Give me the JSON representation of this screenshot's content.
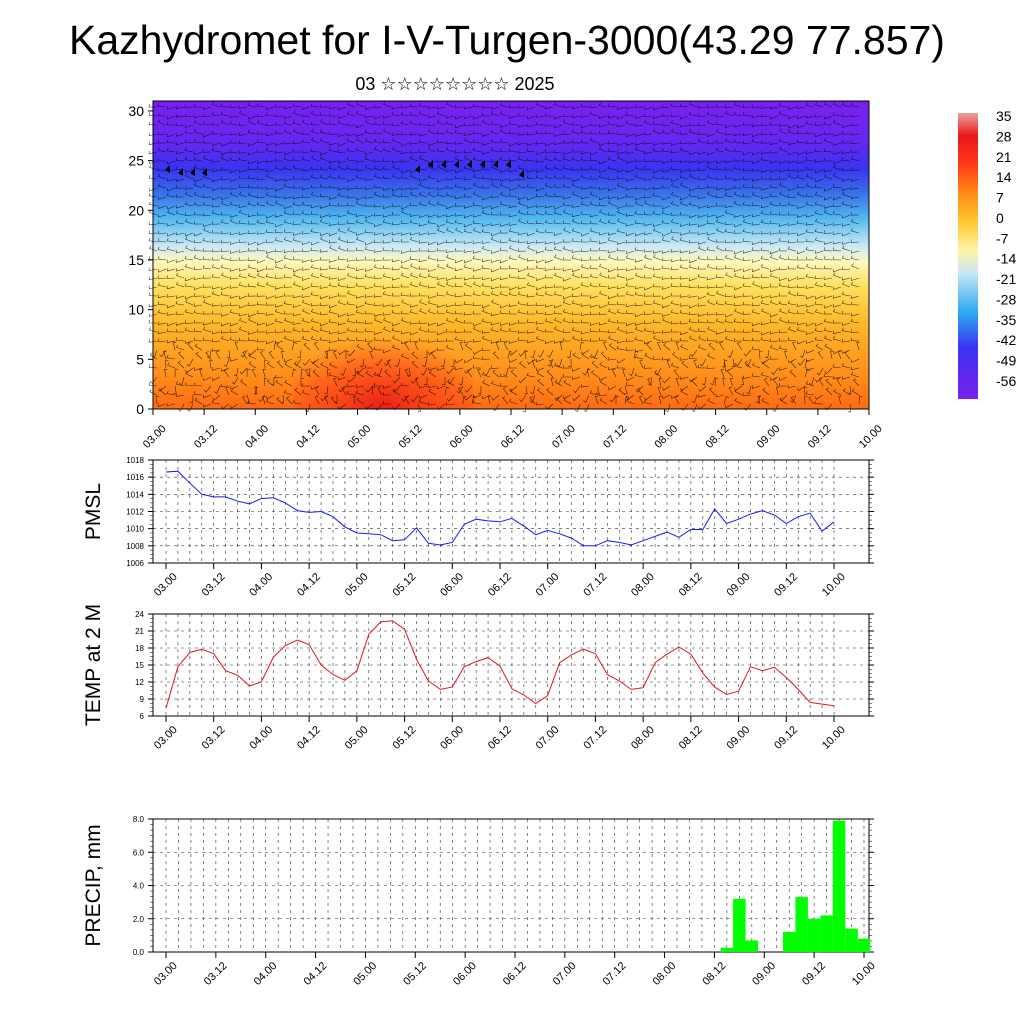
{
  "header": {
    "title": "Kazhydromet for I-V-Turgen-3000(43.29 77.857)",
    "subtitle": "03 ☆☆☆☆☆☆☆☆ 2025"
  },
  "colors": {
    "pmsl_line": "#1a1aff",
    "temp_line": "#e8141e",
    "precip_bar": "#00ff00",
    "wind_barb": "#000000",
    "colormap": [
      "#7a20f0",
      "#3a34f0",
      "#2aa8f0",
      "#c8e8f5",
      "#fff2a8",
      "#ffc830",
      "#ff8c18",
      "#ff3a18",
      "#e81818",
      "#f0a0a0"
    ]
  },
  "chart_data": [
    {
      "type": "heatmap",
      "name": "cross-section",
      "x_ticks": [
        "03.00",
        "03.12",
        "04.00",
        "04.12",
        "05.00",
        "05.12",
        "06.00",
        "06.12",
        "07.00",
        "07.12",
        "08.00",
        "08.12",
        "09.00",
        "09.12",
        "10.00"
      ],
      "y_ticks": [
        0,
        5,
        10,
        15,
        20,
        25,
        30
      ],
      "ylim": [
        0,
        31
      ],
      "colorbar_labels": [
        "35",
        "28",
        "21",
        "14",
        "7",
        "0",
        "-7",
        "-14",
        "-21",
        "-28",
        "-35",
        "-42",
        "-49",
        "-56"
      ],
      "warm_core": {
        "x": "05.06",
        "y_top": 5
      },
      "overlay": "wind barbs"
    },
    {
      "type": "line",
      "ylabel": "PMSL",
      "ylim": [
        1006,
        1018
      ],
      "y_ticks": [
        1006,
        1008,
        1010,
        1012,
        1014,
        1016,
        1018
      ],
      "x_ticks": [
        "03.00",
        "03.12",
        "04.00",
        "04.12",
        "05.00",
        "05.12",
        "06.00",
        "06.12",
        "07.00",
        "07.12",
        "08.00",
        "08.12",
        "09.00",
        "09.12",
        "10.00"
      ],
      "x_step_hours": 3,
      "values": [
        1016.6,
        1016.7,
        1015.3,
        1014.0,
        1013.7,
        1013.7,
        1013.2,
        1012.9,
        1013.5,
        1013.6,
        1013.0,
        1012.1,
        1011.9,
        1012.0,
        1011.4,
        1010.2,
        1009.5,
        1009.4,
        1009.3,
        1008.6,
        1008.7,
        1010.1,
        1008.3,
        1008.1,
        1008.4,
        1010.5,
        1011.1,
        1010.9,
        1010.8,
        1011.2,
        1010.3,
        1009.3,
        1009.8,
        1009.4,
        1008.9,
        1008.0,
        1008.0,
        1008.6,
        1008.4,
        1008.1,
        1008.6,
        1009.1,
        1009.6,
        1009.0,
        1009.9,
        1009.9,
        1012.3,
        1010.6,
        1011.1,
        1011.7,
        1012.1,
        1011.6,
        1010.6,
        1011.4,
        1011.8,
        1009.7,
        1010.8
      ]
    },
    {
      "type": "line",
      "ylabel": "TEMP at 2 M",
      "ylim": [
        6,
        24
      ],
      "y_ticks": [
        6,
        9,
        12,
        15,
        18,
        21,
        24
      ],
      "x_ticks": [
        "03.00",
        "03.12",
        "04.00",
        "04.12",
        "05.00",
        "05.12",
        "06.00",
        "06.12",
        "07.00",
        "07.12",
        "08.00",
        "08.12",
        "09.00",
        "09.12",
        "10.00"
      ],
      "x_step_hours": 3,
      "values": [
        7.4,
        14.7,
        17.2,
        17.8,
        17.0,
        14.0,
        13.2,
        11.3,
        12.0,
        16.4,
        18.4,
        19.4,
        18.6,
        15.0,
        13.3,
        12.3,
        14.0,
        20.4,
        22.6,
        22.8,
        21.3,
        16.0,
        12.2,
        10.7,
        11.1,
        14.7,
        15.6,
        16.3,
        14.8,
        10.8,
        9.7,
        8.2,
        9.6,
        15.4,
        16.8,
        17.8,
        17.0,
        13.3,
        12.2,
        10.7,
        11.0,
        15.4,
        16.9,
        18.2,
        16.9,
        13.6,
        11.1,
        9.8,
        10.4,
        14.7,
        14.0,
        14.6,
        12.8,
        10.7,
        8.4,
        8.1,
        7.8
      ]
    },
    {
      "type": "bar",
      "ylabel": "PRECIP, mm",
      "ylim": [
        0,
        8
      ],
      "y_ticks": [
        "0.0",
        "2.0",
        "4.0",
        "6.0",
        "8.0"
      ],
      "x_ticks": [
        "03.00",
        "03.12",
        "04.00",
        "04.12",
        "05.00",
        "05.12",
        "06.00",
        "06.12",
        "07.00",
        "07.12",
        "08.00",
        "08.12",
        "09.00",
        "09.12",
        "10.00"
      ],
      "x_step_hours": 3,
      "values": [
        0,
        0,
        0,
        0,
        0,
        0,
        0,
        0,
        0,
        0,
        0,
        0,
        0,
        0,
        0,
        0,
        0,
        0,
        0,
        0,
        0,
        0,
        0,
        0,
        0,
        0,
        0,
        0,
        0,
        0,
        0,
        0,
        0,
        0,
        0,
        0,
        0,
        0,
        0,
        0,
        0,
        0,
        0,
        0,
        0,
        0.25,
        3.2,
        0.7,
        0,
        0,
        1.2,
        3.3,
        2.0,
        2.2,
        7.9,
        1.4,
        0.8
      ]
    }
  ]
}
